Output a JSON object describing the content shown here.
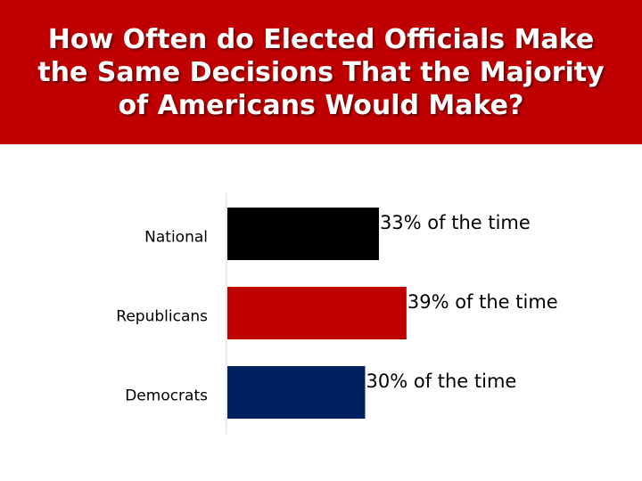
{
  "title": "How Often do Elected Officials Make the Same Decisions That the Majority of Americans Would Make?",
  "colors": {
    "banner": "#c00000",
    "national": "#000000",
    "republicans": "#c00000",
    "democrats": "#002060"
  },
  "chart_data": {
    "type": "bar",
    "orientation": "horizontal",
    "title": "How Often do Elected Officials Make the Same Decisions That the Majority of Americans Would Make?",
    "categories": [
      "National",
      "Republicans",
      "Democrats"
    ],
    "values": [
      33,
      39,
      30
    ],
    "unit": "%",
    "data_labels": [
      "33% of the time",
      "39% of the time",
      "30% of the time"
    ],
    "bar_colors": [
      "#000000",
      "#c00000",
      "#002060"
    ],
    "xlabel": "",
    "ylabel": "",
    "grid": false,
    "legend": "none"
  }
}
